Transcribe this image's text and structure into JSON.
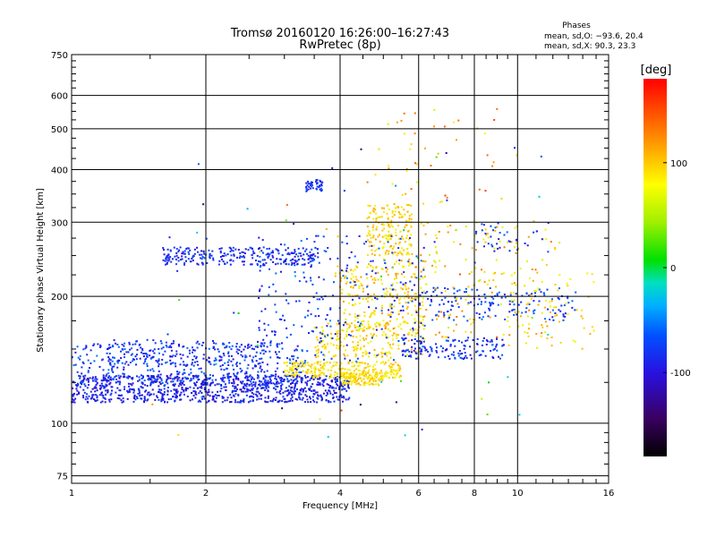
{
  "chart_data": {
    "type": "scatter",
    "title": "Tromsø 20160120 16:26:00–16:27:43",
    "subtitle": "RwPretec (8p)",
    "xlabel": "Frequency [MHz]",
    "ylabel": "Stationary phase Virtual Height [km]",
    "x_scale": "log",
    "y_scale": "log",
    "xlim": [
      1,
      16
    ],
    "ylim": [
      72,
      750
    ],
    "x_ticks": [
      1,
      2,
      4,
      6,
      8,
      10,
      16
    ],
    "x_tick_labels": [
      "1",
      "2",
      "4",
      "6",
      "8",
      "10",
      "16"
    ],
    "y_ticks": [
      75,
      100,
      200,
      300,
      400,
      500,
      600,
      750
    ],
    "y_tick_labels": [
      "75",
      "100",
      "200",
      "300",
      "400",
      "500",
      "600",
      "750"
    ],
    "grid": true,
    "phase_stats": {
      "title": "Phases",
      "line_o": "mean, sd,O: −93.6, 20.4",
      "line_x": "mean, sd,X:  90.3, 23.3"
    },
    "colorbar": {
      "label": "[deg]",
      "range": [
        -180,
        180
      ],
      "ticks": [
        100,
        0,
        -100
      ],
      "tick_labels": [
        "100",
        "0",
        "-100"
      ]
    },
    "colors": {
      "purple": "#3a00a0",
      "blue": "#0a2cff",
      "cyan": "#00c8e6",
      "yellow": "#f0f000",
      "orange": "#ff8a00",
      "red": "#ff1010",
      "green": "#10c810"
    },
    "series": [
      {
        "x_range": [
          1.0,
          4.2
        ],
        "y_range": [
          112,
          130
        ],
        "count": 950,
        "phase": [
          -125,
          -80
        ]
      },
      {
        "x_range": [
          1.0,
          3.4
        ],
        "y_range": [
          123,
          155
        ],
        "count": 380,
        "phase": [
          -115,
          -60
        ]
      },
      {
        "x_range": [
          1.2,
          2.8
        ],
        "y_range": [
          136,
          158
        ],
        "count": 160,
        "phase": [
          -120,
          -70
        ]
      },
      {
        "x_range": [
          1.6,
          3.6
        ],
        "y_range": [
          237,
          262
        ],
        "count": 260,
        "phase": [
          -120,
          -75
        ]
      },
      {
        "x_range": [
          3.35,
          3.65
        ],
        "y_range": [
          355,
          378
        ],
        "count": 45,
        "phase": [
          -110,
          -70
        ]
      },
      {
        "x_range": [
          3.0,
          5.5
        ],
        "y_range": [
          128,
          140
        ],
        "count": 260,
        "phase": [
          80,
          115
        ]
      },
      {
        "x_range": [
          4.0,
          5.0
        ],
        "y_range": [
          123,
          132
        ],
        "count": 120,
        "phase": [
          85,
          115
        ]
      },
      {
        "x_range": [
          3.5,
          6.2
        ],
        "y_range": [
          143,
          175
        ],
        "count": 200,
        "phase": [
          80,
          120
        ]
      },
      {
        "x_range": [
          3.9,
          6.2
        ],
        "y_range": [
          160,
          240
        ],
        "count": 220,
        "phase": [
          75,
          125
        ]
      },
      {
        "x_range": [
          4.6,
          5.8
        ],
        "y_range": [
          250,
          330
        ],
        "count": 170,
        "phase": [
          85,
          120
        ]
      },
      {
        "x_range": [
          2.6,
          6.2
        ],
        "y_range": [
          140,
          280
        ],
        "count": 260,
        "phase": [
          -120,
          -60
        ]
      },
      {
        "x_range": [
          5.5,
          9.4
        ],
        "y_range": [
          142,
          160
        ],
        "count": 140,
        "phase": [
          -120,
          -70
        ]
      },
      {
        "x_range": [
          6.0,
          13.5
        ],
        "y_range": [
          175,
          210
        ],
        "count": 160,
        "phase": [
          -110,
          -60
        ]
      },
      {
        "x_range": [
          5.0,
          12.5
        ],
        "y_range": [
          160,
          300
        ],
        "count": 200,
        "phase": [
          60,
          140
        ]
      },
      {
        "x_range": [
          8.0,
          12.0
        ],
        "y_range": [
          255,
          300
        ],
        "count": 35,
        "phase": [
          -110,
          -60
        ]
      },
      {
        "x_range": [
          4.8,
          9.0
        ],
        "y_range": [
          330,
          560
        ],
        "count": 45,
        "phase": [
          70,
          160
        ]
      },
      {
        "x_range": [
          9.5,
          15.0
        ],
        "y_range": [
          150,
          230
        ],
        "count": 60,
        "phase": [
          80,
          120
        ]
      },
      {
        "x_range": [
          1.5,
          12.0
        ],
        "y_range": [
          90,
          480
        ],
        "count": 80,
        "phase": [
          -160,
          160
        ]
      }
    ]
  }
}
